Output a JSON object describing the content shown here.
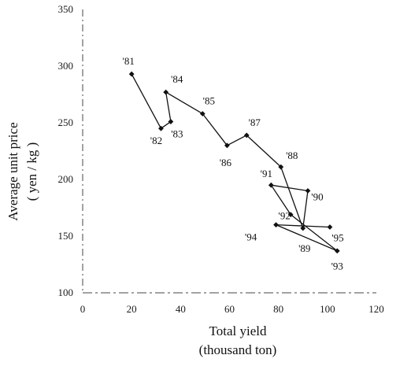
{
  "chart_data": {
    "type": "line",
    "xlabel": "Total yield",
    "xlabel_unit": "(thousand ton)",
    "ylabel": "Average unit price",
    "ylabel_unit": "( yen / kg )",
    "xlim": [
      0,
      120
    ],
    "ylim": [
      100,
      350
    ],
    "xticks": [
      0,
      20,
      40,
      60,
      80,
      100,
      120
    ],
    "yticks": [
      100,
      150,
      200,
      250,
      300,
      350
    ],
    "xtick_labels": [
      "0",
      "20",
      "40",
      "60",
      "80",
      "100",
      "120"
    ],
    "ytick_labels": [
      "100",
      "150",
      "200",
      "250",
      "300",
      "350"
    ],
    "grid": false,
    "legend": "none",
    "line_color": "#111111",
    "series": [
      {
        "points": [
          {
            "label": "'81",
            "x": 20,
            "y": 293
          },
          {
            "label": "'82",
            "x": 32,
            "y": 245
          },
          {
            "label": "'83",
            "x": 36,
            "y": 251
          },
          {
            "label": "'84",
            "x": 34,
            "y": 277
          },
          {
            "label": "'85",
            "x": 49,
            "y": 258
          },
          {
            "label": "'86",
            "x": 59,
            "y": 230
          },
          {
            "label": "'87",
            "x": 67,
            "y": 239
          },
          {
            "label": "'88",
            "x": 81,
            "y": 211
          },
          {
            "label": "'89",
            "x": 90,
            "y": 157
          },
          {
            "label": "'90",
            "x": 92,
            "y": 190
          },
          {
            "label": "'91",
            "x": 77,
            "y": 195
          },
          {
            "label": "'92",
            "x": 85,
            "y": 169
          },
          {
            "label": "'93",
            "x": 104,
            "y": 137
          },
          {
            "label": "'94",
            "x": 79,
            "y": 160
          },
          {
            "label": "'95",
            "x": 101,
            "y": 158
          }
        ]
      }
    ]
  }
}
